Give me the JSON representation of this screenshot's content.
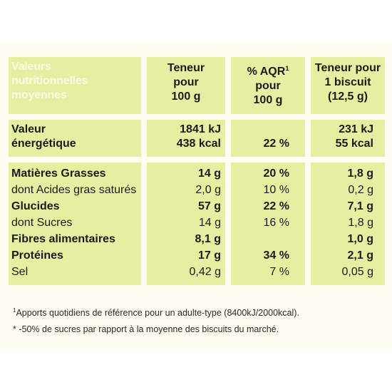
{
  "header": {
    "title_lines": [
      "Valeurs",
      "nutritionnelles",
      "moyennes"
    ],
    "col1": [
      "Teneur",
      "pour",
      "100 g"
    ],
    "col2_line1": "% AQR",
    "col2_sup": "1",
    "col2_rest": [
      "pour",
      "100 g"
    ],
    "col3": [
      "Teneur pour",
      "1 biscuit",
      "(12,5 g)"
    ]
  },
  "energy": {
    "label_lines": [
      "Valeur",
      "énergétique"
    ],
    "per100_kj": "1841 kJ",
    "per100_kcal": "438 kcal",
    "aqr": "22 %",
    "perbiscuit_kj": "231 kJ",
    "perbiscuit_kcal": "55 kcal"
  },
  "nutrients": [
    {
      "name": "Matières Grasses",
      "per100": "14 g",
      "aqr": "20 %",
      "perbiscuit": "1,8 g",
      "bold": true
    },
    {
      "name": "dont Acides gras saturés",
      "per100": "2,0 g",
      "aqr": "10 %",
      "perbiscuit": "0,2 g",
      "bold": false
    },
    {
      "name": "Glucides",
      "per100": "57 g",
      "aqr": "22 %",
      "perbiscuit": "7,1 g",
      "bold": true
    },
    {
      "name": "dont Sucres",
      "per100": "14 g",
      "aqr": "16 %",
      "perbiscuit": "1,8 g",
      "bold": false
    },
    {
      "name": "Fibres alimentaires",
      "per100": "8,1 g",
      "aqr": "",
      "perbiscuit": "1,0 g",
      "bold": true
    },
    {
      "name": "Protéines",
      "per100": "17 g",
      "aqr": "34 %",
      "perbiscuit": "2,1 g",
      "bold": true
    },
    {
      "name": "Sel",
      "per100": "0,42 g",
      "aqr": "7 %",
      "perbiscuit": "0,05 g",
      "bold": false
    }
  ],
  "footnotes": {
    "note1_sup": "1",
    "note1": "Apports quotidiens de référence pour un adulte-type (8400kJ/2000kcal).",
    "note2": "* -50% de sucres par rapport à la moyenne des biscuits du marché."
  },
  "colors": {
    "cell_green": "#e6eea2",
    "panel_bg": "#fdfdf2",
    "header_title_text": "#fbfbe6",
    "text": "#1b1b18"
  }
}
